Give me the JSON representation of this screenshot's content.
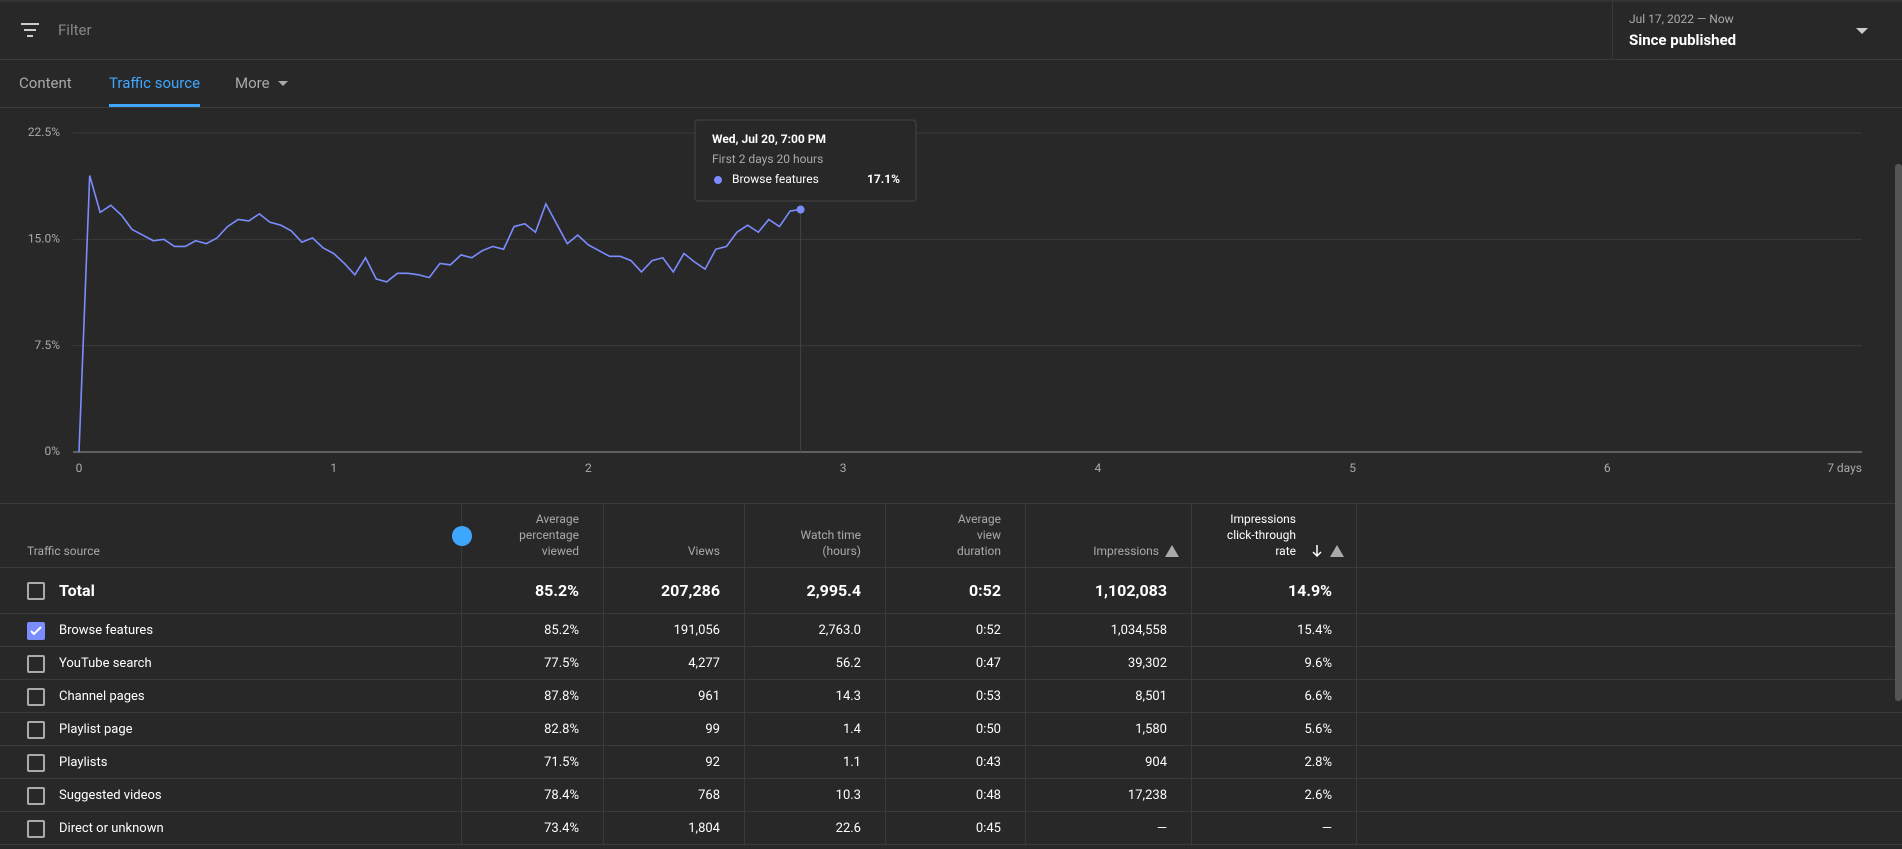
{
  "filter_bar": {
    "placeholder": "Filter",
    "date_range": "Jul 17, 2022 — Now",
    "period": "Since published"
  },
  "tabs": [
    "Content",
    "Traffic source",
    "More"
  ],
  "active_tab": 1,
  "chart_data": {
    "type": "line",
    "x": [
      0,
      0.042,
      0.083,
      0.125,
      0.167,
      0.208,
      0.25,
      0.292,
      0.333,
      0.375,
      0.417,
      0.458,
      0.5,
      0.542,
      0.583,
      0.625,
      0.667,
      0.708,
      0.75,
      0.792,
      0.833,
      0.875,
      0.917,
      0.958,
      1,
      1.042,
      1.083,
      1.125,
      1.167,
      1.208,
      1.25,
      1.292,
      1.333,
      1.375,
      1.417,
      1.458,
      1.5,
      1.542,
      1.583,
      1.625,
      1.667,
      1.708,
      1.75,
      1.792,
      1.833,
      1.875,
      1.917,
      1.958,
      2,
      2.042,
      2.083,
      2.125,
      2.167,
      2.208,
      2.25,
      2.292,
      2.333,
      2.375,
      2.417,
      2.458,
      2.5,
      2.542,
      2.583,
      2.625,
      2.667,
      2.708,
      2.75,
      2.792,
      2.833
    ],
    "series": [
      {
        "name": "Browse features",
        "color": "#7b8cff",
        "values": [
          0,
          19.5,
          16.9,
          17.4,
          16.7,
          15.7,
          15.3,
          14.9,
          15.0,
          14.5,
          14.5,
          14.9,
          14.7,
          15.1,
          15.9,
          16.4,
          16.3,
          16.8,
          16.2,
          16.0,
          15.6,
          14.8,
          15.1,
          14.4,
          14.0,
          13.3,
          12.5,
          13.7,
          12.2,
          12.0,
          12.6,
          12.6,
          12.5,
          12.3,
          13.3,
          13.2,
          13.9,
          13.7,
          14.2,
          14.5,
          14.3,
          15.9,
          16.1,
          15.5,
          17.5,
          16.1,
          14.7,
          15.3,
          14.6,
          14.2,
          13.8,
          13.8,
          13.5,
          12.7,
          13.5,
          13.7,
          12.7,
          14.0,
          13.4,
          12.9,
          14.3,
          14.5,
          15.5,
          16.0,
          15.5,
          16.4,
          15.9,
          17.0,
          17.1
        ]
      }
    ],
    "xlim": [
      0,
      7
    ],
    "xticks": [
      0,
      1,
      2,
      3,
      4,
      5,
      6,
      {
        "value": 7,
        "label": "7 days"
      }
    ],
    "ylim": [
      0,
      22.5
    ],
    "yticks": [
      {
        "value": 0,
        "label": "0%"
      },
      {
        "value": 7.5,
        "label": "7.5%"
      },
      {
        "value": 15,
        "label": "15.0%"
      },
      {
        "value": 22.5,
        "label": "22.5%"
      }
    ],
    "grid": true,
    "tooltip": {
      "title": "Wed, Jul 20, 7:00 PM",
      "subtitle": "First 2 days 20 hours",
      "series": "Browse features",
      "value_label": "17.1%"
    }
  },
  "table": {
    "columns": [
      "Traffic source",
      "Average percentage viewed",
      "Views",
      "Watch time (hours)",
      "Average view duration",
      "Impressions",
      "Impressions click-through rate"
    ],
    "total": {
      "label": "Total",
      "cells": [
        "85.2%",
        "207,286",
        "2,995.4",
        "0:52",
        "1,102,083",
        "14.9%"
      ]
    },
    "rows": [
      {
        "source": "Browse features",
        "checked": true,
        "cells": [
          "85.2%",
          "191,056",
          "2,763.0",
          "0:52",
          "1,034,558",
          "15.4%"
        ]
      },
      {
        "source": "YouTube search",
        "checked": false,
        "cells": [
          "77.5%",
          "4,277",
          "56.2",
          "0:47",
          "39,302",
          "9.6%"
        ]
      },
      {
        "source": "Channel pages",
        "checked": false,
        "cells": [
          "87.8%",
          "961",
          "14.3",
          "0:53",
          "8,501",
          "6.6%"
        ]
      },
      {
        "source": "Playlist page",
        "checked": false,
        "cells": [
          "82.8%",
          "99",
          "1.4",
          "0:50",
          "1,580",
          "5.6%"
        ]
      },
      {
        "source": "Playlists",
        "checked": false,
        "cells": [
          "71.5%",
          "92",
          "1.1",
          "0:43",
          "904",
          "2.8%"
        ]
      },
      {
        "source": "Suggested videos",
        "checked": false,
        "cells": [
          "78.4%",
          "768",
          "10.3",
          "0:48",
          "17,238",
          "2.6%"
        ]
      },
      {
        "source": "Direct or unknown",
        "checked": false,
        "cells": [
          "73.4%",
          "1,804",
          "22.6",
          "0:45",
          "—",
          "—"
        ]
      }
    ]
  }
}
